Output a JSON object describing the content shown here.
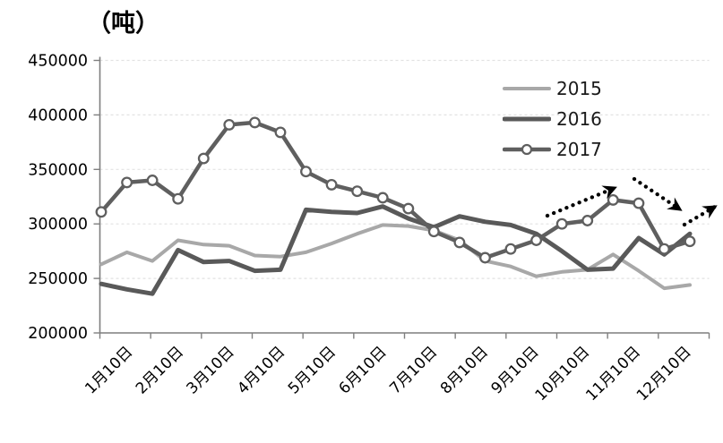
{
  "chart_data": {
    "type": "line",
    "title": "（吨）",
    "unit": "吨",
    "y_axis": {
      "min": 200000,
      "max": 450000,
      "step": 50000,
      "tick_labels": [
        "450000",
        "400000",
        "350000",
        "300000",
        "250000",
        "200000"
      ],
      "gridlines": "dashed"
    },
    "x_axis": {
      "tick_labels": [
        "1月10日",
        "2月10日",
        "3月10日",
        "4月10日",
        "5月10日",
        "6月10日",
        "7月10日",
        "8月10日",
        "9月10日",
        "10月10日",
        "11月10日",
        "12月10日"
      ],
      "points_per_month": 2
    },
    "legend": {
      "position": "top-right",
      "entries": [
        "2015",
        "2016",
        "2017"
      ]
    },
    "series": [
      {
        "name": "2015",
        "color": "#a8a8a8",
        "stroke_width": 4,
        "marker": "none",
        "values": [
          263000,
          274000,
          266000,
          285000,
          281000,
          280000,
          271000,
          270000,
          274000,
          282000,
          291000,
          299000,
          298000,
          294000,
          285000,
          266000,
          261000,
          252000,
          256000,
          258000,
          272000,
          257000,
          241000,
          244000
        ]
      },
      {
        "name": "2016",
        "color": "#595959",
        "stroke_width": 5,
        "marker": "none",
        "values": [
          245000,
          240000,
          236000,
          276000,
          265000,
          266000,
          257000,
          258000,
          313000,
          311000,
          310000,
          316000,
          305000,
          297000,
          307000,
          302000,
          299000,
          291000,
          275000,
          258000,
          259000,
          287000,
          272000,
          291000
        ]
      },
      {
        "name": "2017",
        "color": "#5f5f5f",
        "stroke_width": 4.5,
        "marker": "circle",
        "marker_fill": "#ffffff",
        "values": [
          311000,
          338000,
          340000,
          323000,
          360000,
          391000,
          393000,
          384000,
          348000,
          336000,
          330000,
          324000,
          314000,
          293000,
          283000,
          269000,
          277000,
          285000,
          300000,
          303000,
          322000,
          319000,
          277000,
          284000
        ]
      }
    ],
    "annotations": {
      "color": "#000000",
      "arrows": [
        {
          "direction": "up",
          "from": [
            611,
            241
          ],
          "to": [
            686,
            210
          ]
        },
        {
          "direction": "down",
          "from": [
            708,
            200
          ],
          "to": [
            759,
            234
          ]
        },
        {
          "direction": "up",
          "from": [
            764,
            251
          ],
          "to": [
            798,
            231
          ]
        }
      ]
    }
  }
}
